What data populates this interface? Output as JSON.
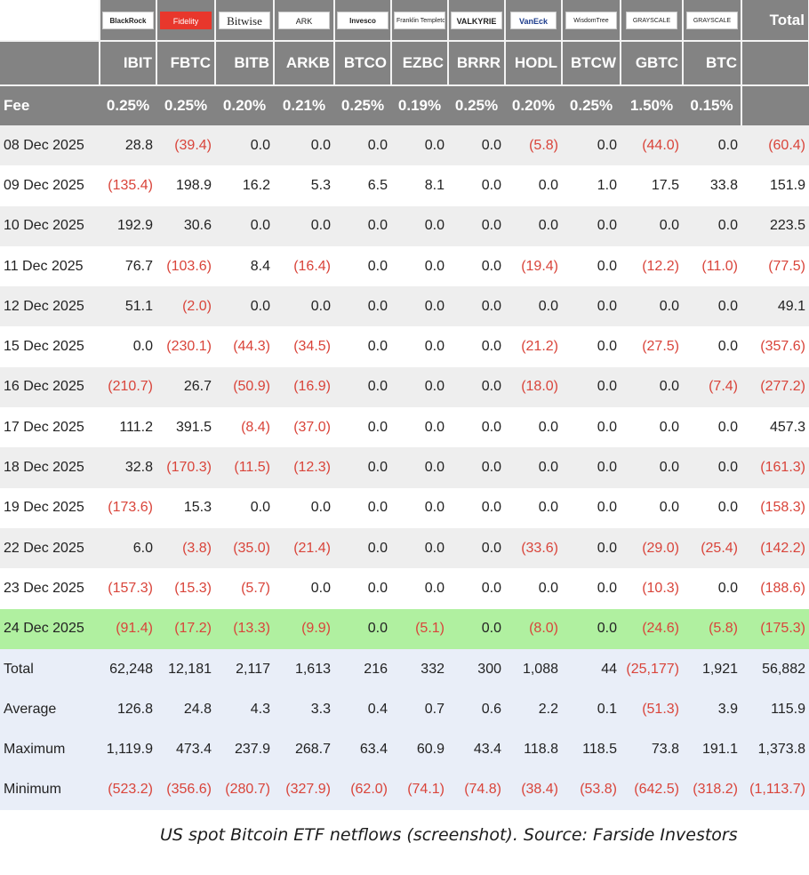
{
  "chart_data": {
    "type": "table",
    "title": "",
    "logos": [
      "BlackRock",
      "Fidelity",
      "Bitwise",
      "ARK",
      "Invesco",
      "Franklin Templeton",
      "VALKYRIE",
      "VanEck",
      "WisdomTree",
      "GRAYSCALE",
      "GRAYSCALE"
    ],
    "tickers": [
      "IBIT",
      "FBTC",
      "BITB",
      "ARKB",
      "BTCO",
      "EZBC",
      "BRRR",
      "HODL",
      "BTCW",
      "GBTC",
      "BTC"
    ],
    "total_header": "Total",
    "fee_label": "Fee",
    "fees": [
      "0.25%",
      "0.25%",
      "0.20%",
      "0.21%",
      "0.25%",
      "0.19%",
      "0.25%",
      "0.20%",
      "0.25%",
      "1.50%",
      "0.15%"
    ],
    "rows": [
      {
        "date": "08 Dec 2025",
        "values": [
          "28.8",
          "(39.4)",
          "0.0",
          "0.0",
          "0.0",
          "0.0",
          "0.0",
          "(5.8)",
          "0.0",
          "(44.0)",
          "0.0",
          "(60.4)"
        ]
      },
      {
        "date": "09 Dec 2025",
        "values": [
          "(135.4)",
          "198.9",
          "16.2",
          "5.3",
          "6.5",
          "8.1",
          "0.0",
          "0.0",
          "1.0",
          "17.5",
          "33.8",
          "151.9"
        ]
      },
      {
        "date": "10 Dec 2025",
        "values": [
          "192.9",
          "30.6",
          "0.0",
          "0.0",
          "0.0",
          "0.0",
          "0.0",
          "0.0",
          "0.0",
          "0.0",
          "0.0",
          "223.5"
        ]
      },
      {
        "date": "11 Dec 2025",
        "values": [
          "76.7",
          "(103.6)",
          "8.4",
          "(16.4)",
          "0.0",
          "0.0",
          "0.0",
          "(19.4)",
          "0.0",
          "(12.2)",
          "(11.0)",
          "(77.5)"
        ]
      },
      {
        "date": "12 Dec 2025",
        "values": [
          "51.1",
          "(2.0)",
          "0.0",
          "0.0",
          "0.0",
          "0.0",
          "0.0",
          "0.0",
          "0.0",
          "0.0",
          "0.0",
          "49.1"
        ]
      },
      {
        "date": "15 Dec 2025",
        "values": [
          "0.0",
          "(230.1)",
          "(44.3)",
          "(34.5)",
          "0.0",
          "0.0",
          "0.0",
          "(21.2)",
          "0.0",
          "(27.5)",
          "0.0",
          "(357.6)"
        ]
      },
      {
        "date": "16 Dec 2025",
        "values": [
          "(210.7)",
          "26.7",
          "(50.9)",
          "(16.9)",
          "0.0",
          "0.0",
          "0.0",
          "(18.0)",
          "0.0",
          "0.0",
          "(7.4)",
          "(277.2)"
        ]
      },
      {
        "date": "17 Dec 2025",
        "values": [
          "111.2",
          "391.5",
          "(8.4)",
          "(37.0)",
          "0.0",
          "0.0",
          "0.0",
          "0.0",
          "0.0",
          "0.0",
          "0.0",
          "457.3"
        ]
      },
      {
        "date": "18 Dec 2025",
        "values": [
          "32.8",
          "(170.3)",
          "(11.5)",
          "(12.3)",
          "0.0",
          "0.0",
          "0.0",
          "0.0",
          "0.0",
          "0.0",
          "0.0",
          "(161.3)"
        ]
      },
      {
        "date": "19 Dec 2025",
        "values": [
          "(173.6)",
          "15.3",
          "0.0",
          "0.0",
          "0.0",
          "0.0",
          "0.0",
          "0.0",
          "0.0",
          "0.0",
          "0.0",
          "(158.3)"
        ]
      },
      {
        "date": "22 Dec 2025",
        "values": [
          "6.0",
          "(3.8)",
          "(35.0)",
          "(21.4)",
          "0.0",
          "0.0",
          "0.0",
          "(33.6)",
          "0.0",
          "(29.0)",
          "(25.4)",
          "(142.2)"
        ]
      },
      {
        "date": "23 Dec 2025",
        "values": [
          "(157.3)",
          "(15.3)",
          "(5.7)",
          "0.0",
          "0.0",
          "0.0",
          "0.0",
          "0.0",
          "0.0",
          "(10.3)",
          "0.0",
          "(188.6)"
        ]
      },
      {
        "date": "24 Dec 2025",
        "values": [
          "(91.4)",
          "(17.2)",
          "(13.3)",
          "(9.9)",
          "0.0",
          "(5.1)",
          "0.0",
          "(8.0)",
          "0.0",
          "(24.6)",
          "(5.8)",
          "(175.3)"
        ]
      }
    ],
    "highlighted_date": "24 Dec 2025",
    "summary": [
      {
        "label": "Total",
        "values": [
          "62,248",
          "12,181",
          "2,117",
          "1,613",
          "216",
          "332",
          "300",
          "1,088",
          "44",
          "(25,177)",
          "1,921",
          "56,882"
        ]
      },
      {
        "label": "Average",
        "values": [
          "126.8",
          "24.8",
          "4.3",
          "3.3",
          "0.4",
          "0.7",
          "0.6",
          "2.2",
          "0.1",
          "(51.3)",
          "3.9",
          "115.9"
        ]
      },
      {
        "label": "Maximum",
        "values": [
          "1,119.9",
          "473.4",
          "237.9",
          "268.7",
          "63.4",
          "60.9",
          "43.4",
          "118.8",
          "118.5",
          "73.8",
          "191.1",
          "1,373.8"
        ]
      },
      {
        "label": "Minimum",
        "values": [
          "(523.2)",
          "(356.6)",
          "(280.7)",
          "(327.9)",
          "(62.0)",
          "(74.1)",
          "(74.8)",
          "(38.4)",
          "(53.8)",
          "(642.5)",
          "(318.2)",
          "(1,113.7)"
        ]
      }
    ],
    "caption": "US spot Bitcoin ETF netflows (screenshot). Source: Farside Investors"
  },
  "colors": {
    "header_bg": "#838383",
    "header_text": "#ffffff",
    "negative_text": "#d9443a",
    "highlight_row": "#b0f0a0",
    "summary_bg": "#e9eef8",
    "stripe_bg": "#eeeeee"
  }
}
